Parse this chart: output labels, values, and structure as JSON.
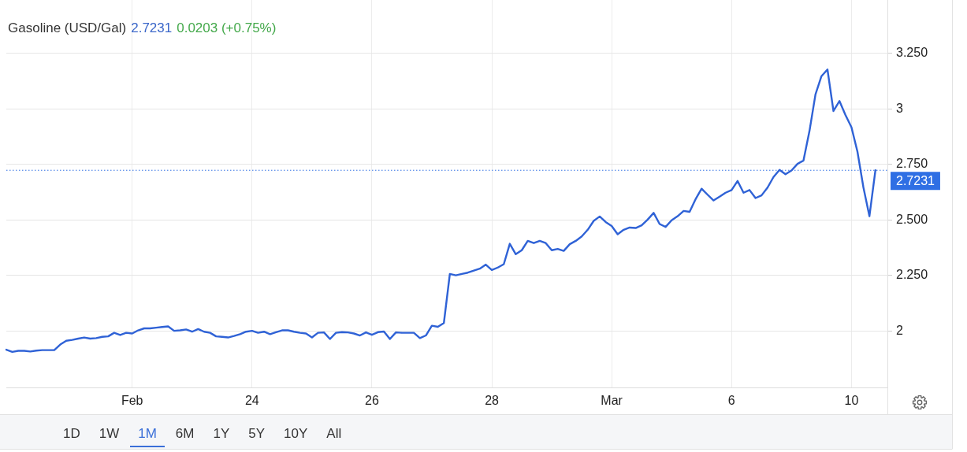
{
  "chart_data": {
    "type": "line",
    "title": "Gasoline (USD/Gal)",
    "annotations": [
      "2.7231",
      "0.0203 (+0.75%)",
      "1D",
      "1W",
      "1M",
      "6M",
      "1Y",
      "5Y",
      "10Y",
      "All"
    ],
    "categories": [
      null,
      null,
      null,
      null,
      null,
      null,
      null,
      null,
      null,
      null,
      null,
      null,
      null,
      null,
      null,
      null,
      null,
      null,
      null,
      null,
      null,
      "Feb",
      null,
      null,
      null,
      null,
      null,
      null,
      null,
      null,
      null,
      null,
      null,
      null,
      null,
      null,
      null,
      null,
      null,
      null,
      null,
      "24",
      null,
      null,
      null,
      null,
      null,
      null,
      null,
      null,
      null,
      null,
      null,
      null,
      null,
      null,
      null,
      null,
      null,
      null,
      null,
      "26",
      null,
      null,
      null,
      null,
      null,
      null,
      null,
      null,
      null,
      null,
      null,
      null,
      null,
      null,
      null,
      null,
      null,
      null,
      null,
      "28",
      null,
      null,
      null,
      null,
      null,
      null,
      null,
      null,
      null,
      null,
      null,
      null,
      null,
      null,
      null,
      null,
      null,
      null,
      null,
      "Mar",
      null,
      null,
      null,
      null,
      null,
      null,
      null,
      null,
      null,
      null,
      null,
      null,
      null,
      null,
      null,
      null,
      null,
      null,
      null,
      "6",
      null,
      null,
      null,
      null,
      null,
      null,
      null,
      null,
      null,
      null,
      null,
      null,
      null,
      null,
      null,
      null,
      null,
      null,
      null,
      "10",
      null,
      null,
      null,
      null,
      null,
      null
    ],
    "series": [
      {
        "color": "#2f62d6",
        "values": [
          1.915,
          1.905,
          1.91,
          1.91,
          1.907,
          1.911,
          1.913,
          1.913,
          1.913,
          1.938,
          1.955,
          1.959,
          1.965,
          1.97,
          1.965,
          1.967,
          1.973,
          1.975,
          1.991,
          1.981,
          1.991,
          1.988,
          2.002,
          2.011,
          2.011,
          2.014,
          2.017,
          2.02,
          2.0,
          2.002,
          2.006,
          1.996,
          2.008,
          1.996,
          1.991,
          1.975,
          1.973,
          1.97,
          1.977,
          1.985,
          1.996,
          2.0,
          1.991,
          1.996,
          1.985,
          1.994,
          2.002,
          2.002,
          1.996,
          1.991,
          1.988,
          1.97,
          1.991,
          1.993,
          1.963,
          1.991,
          1.994,
          1.993,
          1.988,
          1.979,
          1.993,
          1.982,
          1.994,
          1.997,
          1.963,
          1.993,
          1.991,
          1.991,
          1.991,
          1.967,
          1.979,
          2.023,
          2.018,
          2.035,
          2.256,
          2.25,
          2.256,
          2.262,
          2.271,
          2.28,
          2.298,
          2.274,
          2.285,
          2.3,
          2.392,
          2.345,
          2.363,
          2.405,
          2.395,
          2.405,
          2.395,
          2.363,
          2.369,
          2.36,
          2.39,
          2.405,
          2.425,
          2.455,
          2.495,
          2.515,
          2.49,
          2.472,
          2.435,
          2.455,
          2.465,
          2.463,
          2.475,
          2.501,
          2.531,
          2.481,
          2.468,
          2.498,
          2.516,
          2.54,
          2.536,
          2.593,
          2.64,
          2.613,
          2.587,
          2.604,
          2.622,
          2.634,
          2.675,
          2.622,
          2.634,
          2.598,
          2.61,
          2.645,
          2.693,
          2.725,
          2.705,
          2.722,
          2.752,
          2.767,
          2.9,
          3.065,
          3.147,
          3.177,
          2.99,
          3.035,
          2.972,
          2.917,
          2.807,
          2.646,
          2.516,
          2.723,
          null,
          null
        ]
      }
    ],
    "ylim": [
      1.745,
      3.49
    ],
    "yticks": [
      2,
      {
        "value": 2.25,
        "label": "2.250"
      },
      {
        "value": 2.5,
        "label": "2.500"
      },
      {
        "value": 2.75,
        "label": "2.750"
      },
      3,
      {
        "value": 3.25,
        "label": "3.250"
      }
    ],
    "grid": true,
    "marker": "none",
    "line_style": "solid",
    "ref_lines": [
      {
        "axis": "y",
        "value": 2.7231,
        "label": "2.7231",
        "color": "#2f6fe4",
        "line_style": "dotted"
      }
    ]
  }
}
